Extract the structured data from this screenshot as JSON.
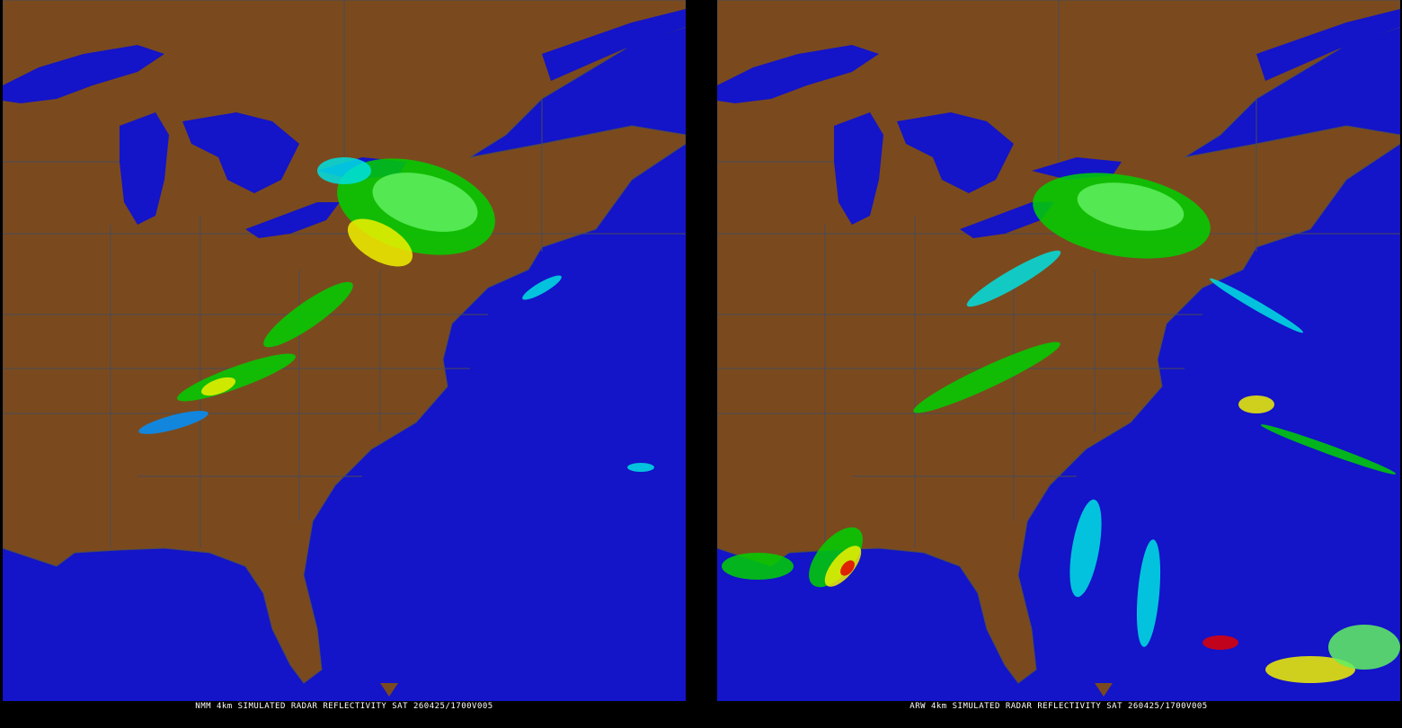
{
  "colors": {
    "ocean": "#1414c8",
    "land": "#7a4a1e",
    "borders": "#4a4a55",
    "background": "#000000",
    "radar": [
      "#00e0e0",
      "#0090ff",
      "#00d000",
      "#60f060",
      "#f0f000",
      "#f09000",
      "#e00000"
    ]
  },
  "panels": [
    {
      "model": "NMM",
      "caption": "NMM 4km SIMULATED RADAR REFLECTIVITY SAT 260425/1700V005"
    },
    {
      "model": "ARW",
      "caption": "ARW 4km SIMULATED RADAR REFLECTIVITY SAT 260425/1700V005"
    }
  ]
}
